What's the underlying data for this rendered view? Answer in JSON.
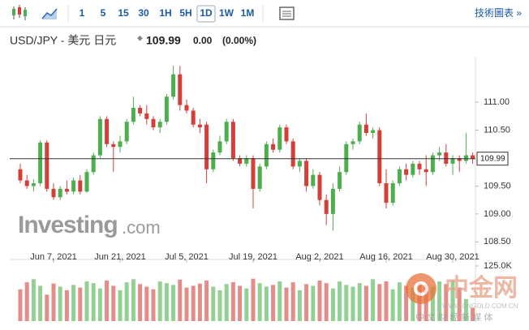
{
  "toolbar": {
    "intervals": [
      "1",
      "5",
      "15",
      "30",
      "1H",
      "5H",
      "1D",
      "1W",
      "1M"
    ],
    "active": "1D",
    "tech_chart": "技術圖表 »"
  },
  "header": {
    "symbol": "USD/JPY - 美元 日元",
    "change": "0.00",
    "change_pct": "(0.00%)"
  },
  "watermark": {
    "brand": "Investing",
    "domain": ".com",
    "site": "中金网",
    "site_url": "WWW.CNGOLD.COM.CN",
    "site_slogan": "中 文 财 经 新 媒 体"
  },
  "chart_data": {
    "type": "candlestick",
    "last_price": 109.99,
    "categories": [
      null,
      null,
      null,
      null,
      null,
      "Jun 7, 2021",
      null,
      null,
      null,
      null,
      null,
      null,
      null,
      null,
      null,
      "Jun 21, 2021",
      null,
      null,
      null,
      null,
      null,
      null,
      null,
      null,
      null,
      "Jul 5, 2021",
      null,
      null,
      null,
      null,
      null,
      null,
      null,
      null,
      null,
      "Jul 19, 2021",
      null,
      null,
      null,
      null,
      null,
      null,
      null,
      null,
      null,
      "Aug 2, 2021",
      null,
      null,
      null,
      null,
      null,
      null,
      null,
      null,
      null,
      "Aug 16, 2021",
      null,
      null,
      null,
      null,
      null,
      null,
      null,
      null,
      null,
      "Aug 30, 2021",
      null,
      null,
      null
    ],
    "open": [
      109.8,
      109.6,
      109.5,
      109.55,
      110.28,
      109.45,
      109.3,
      109.45,
      109.4,
      109.6,
      109.4,
      109.75,
      110.05,
      110.7,
      110.25,
      110.2,
      110.3,
      110.65,
      110.9,
      110.8,
      110.7,
      110.55,
      110.65,
      111.1,
      111.5,
      110.95,
      110.85,
      110.6,
      110.6,
      109.8,
      110.1,
      110.3,
      110.65,
      110.0,
      109.9,
      110.0,
      109.45,
      109.85,
      110.25,
      110.15,
      110.55,
      110.3,
      109.85,
      109.95,
      109.5,
      109.7,
      109.25,
      109.0,
      109.45,
      109.75,
      110.25,
      110.3,
      110.6,
      110.45,
      110.5,
      109.55,
      109.2,
      109.55,
      109.8,
      109.7,
      109.9,
      109.8,
      109.75,
      110.05,
      110.1,
      109.9,
      110.0,
      109.95,
      110.05
    ],
    "high": [
      109.9,
      109.7,
      109.62,
      110.32,
      110.32,
      109.55,
      109.5,
      109.6,
      109.65,
      109.7,
      109.8,
      110.1,
      110.75,
      110.75,
      110.3,
      110.4,
      110.7,
      111.1,
      110.95,
      110.95,
      110.75,
      110.7,
      111.15,
      111.65,
      111.65,
      111.05,
      110.9,
      110.7,
      110.65,
      110.15,
      110.4,
      110.7,
      110.7,
      110.05,
      110.05,
      110.05,
      109.9,
      110.3,
      110.35,
      110.6,
      110.6,
      110.35,
      110.0,
      110.0,
      109.8,
      109.75,
      109.35,
      109.55,
      109.85,
      110.3,
      110.35,
      110.65,
      110.8,
      110.55,
      110.55,
      109.8,
      109.6,
      109.85,
      109.9,
      109.95,
      109.95,
      110.05,
      110.1,
      110.2,
      110.25,
      110.05,
      110.05,
      110.45,
      110.1
    ],
    "low": [
      109.55,
      109.45,
      109.4,
      109.5,
      109.4,
      109.25,
      109.25,
      109.35,
      109.35,
      109.35,
      109.38,
      109.7,
      110.0,
      110.2,
      109.75,
      110.1,
      110.25,
      110.6,
      110.75,
      110.6,
      110.5,
      110.45,
      110.6,
      111.05,
      110.85,
      110.8,
      110.55,
      110.45,
      109.55,
      109.75,
      110.05,
      110.25,
      109.95,
      109.85,
      109.85,
      109.1,
      109.4,
      109.8,
      110.1,
      110.1,
      110.25,
      109.8,
      109.75,
      109.4,
      109.45,
      109.15,
      108.8,
      108.7,
      109.4,
      109.7,
      110.15,
      110.25,
      110.4,
      110.35,
      109.5,
      109.1,
      109.15,
      109.5,
      109.6,
      109.65,
      109.7,
      109.5,
      109.7,
      109.95,
      109.85,
      109.7,
      109.75,
      109.9,
      109.9
    ],
    "close": [
      109.6,
      109.5,
      109.55,
      110.28,
      109.45,
      109.3,
      109.45,
      109.4,
      109.6,
      109.4,
      109.75,
      110.05,
      110.7,
      110.25,
      110.2,
      110.3,
      110.65,
      110.9,
      110.8,
      110.7,
      110.55,
      110.65,
      111.1,
      111.5,
      110.95,
      110.85,
      110.6,
      110.55,
      109.8,
      110.1,
      110.3,
      110.65,
      110.0,
      109.9,
      110.0,
      109.45,
      109.85,
      110.25,
      110.15,
      110.55,
      110.3,
      109.85,
      109.95,
      109.5,
      109.7,
      109.25,
      109.0,
      109.45,
      109.75,
      110.25,
      110.3,
      110.6,
      110.45,
      110.5,
      109.55,
      109.2,
      109.55,
      109.8,
      109.7,
      109.9,
      109.8,
      109.75,
      110.05,
      110.1,
      109.9,
      110.0,
      109.95,
      110.05,
      109.99
    ],
    "volume": [
      72000,
      88000,
      95000,
      80000,
      60000,
      85000,
      78000,
      70000,
      82000,
      76000,
      90000,
      86000,
      74000,
      92000,
      80000,
      70000,
      88000,
      95000,
      84000,
      78000,
      72000,
      90000,
      86000,
      82000,
      94000,
      76000,
      80000,
      85000,
      92000,
      78000,
      70000,
      84000,
      88000,
      80000,
      74000,
      96000,
      86000,
      78000,
      82000,
      90000,
      76000,
      88000,
      70000,
      84000,
      80000,
      92000,
      86000,
      74000,
      90000,
      82000,
      78000,
      86000,
      80000,
      95000,
      84000,
      90000,
      72000,
      88000,
      80000,
      76000,
      86000,
      82000,
      78000,
      90000,
      84000,
      92000,
      76000,
      50000,
      30000
    ],
    "up_color": "#4cae4c",
    "down_color": "#d43f3a",
    "volume_up_color": "#93d093",
    "volume_down_color": "#e48c89",
    "ylim": [
      108.2,
      111.8
    ],
    "yticks": [
      {
        "value": 108.5,
        "label": "108.50"
      },
      {
        "value": 109,
        "label": "109.00"
      },
      {
        "value": 109.5,
        "label": "109.50"
      },
      {
        "value": 110.5,
        "label": "110.50"
      },
      {
        "value": 111,
        "label": "111.00"
      }
    ],
    "volume_lim": [
      0,
      125000
    ],
    "volume_ticks": [
      {
        "value": 125000,
        "label": "125.0K"
      }
    ]
  }
}
